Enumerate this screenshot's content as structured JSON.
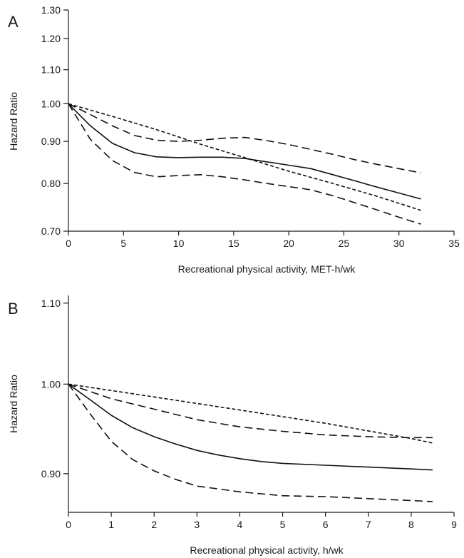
{
  "chart_data": [
    {
      "panel": "A",
      "type": "line",
      "xlabel": "Recreational physical activity, MET-h/wk",
      "ylabel": "Hazard Ratio",
      "xlim": [
        0,
        35
      ],
      "ylim": [
        0.7,
        1.3
      ],
      "yscale": "log",
      "xticks": [
        0,
        5,
        10,
        15,
        20,
        25,
        30,
        35
      ],
      "yticks": [
        0.7,
        0.8,
        0.9,
        1.0,
        1.1,
        1.2,
        1.3
      ],
      "ytick_labels": [
        "0.70",
        "0.80",
        "0.90",
        "1.00",
        "1.10",
        "1.20",
        "1.30"
      ],
      "grid": false,
      "legend": "none",
      "series": [
        {
          "style": "solid",
          "x": [
            0,
            2,
            4,
            6,
            8,
            10,
            12,
            14,
            16,
            18,
            20,
            22,
            24,
            26,
            28,
            30,
            32
          ],
          "y": [
            1.0,
            0.94,
            0.895,
            0.872,
            0.862,
            0.86,
            0.861,
            0.861,
            0.858,
            0.85,
            0.842,
            0.834,
            0.82,
            0.806,
            0.792,
            0.779,
            0.766
          ]
        },
        {
          "style": "long-dash",
          "x": [
            0,
            2,
            4,
            6,
            8,
            10,
            12,
            14,
            16,
            18,
            20,
            22,
            24,
            26,
            28,
            30,
            32
          ],
          "y": [
            1.0,
            0.905,
            0.853,
            0.825,
            0.815,
            0.818,
            0.82,
            0.815,
            0.808,
            0.8,
            0.793,
            0.786,
            0.773,
            0.758,
            0.743,
            0.728,
            0.714
          ]
        },
        {
          "style": "long-dash",
          "x": [
            0,
            2,
            4,
            6,
            8,
            10,
            12,
            14,
            16,
            18,
            20,
            22,
            24,
            26,
            28,
            30,
            32
          ],
          "y": [
            1.0,
            0.97,
            0.94,
            0.915,
            0.903,
            0.9,
            0.903,
            0.908,
            0.91,
            0.902,
            0.892,
            0.88,
            0.868,
            0.855,
            0.844,
            0.834,
            0.824
          ]
        },
        {
          "style": "short-dash",
          "x": [
            0,
            4,
            8,
            12,
            16,
            20,
            24,
            28,
            32
          ],
          "y": [
            1.0,
            0.965,
            0.93,
            0.893,
            0.86,
            0.828,
            0.8,
            0.772,
            0.742
          ]
        }
      ]
    },
    {
      "panel": "B",
      "type": "line",
      "xlabel": "Recreational physical activity, h/wk",
      "ylabel": "Hazard Ratio",
      "xlim": [
        0,
        9
      ],
      "ylim": [
        0.86,
        1.11
      ],
      "yscale": "log",
      "xticks": [
        0,
        1,
        2,
        3,
        4,
        5,
        6,
        7,
        8,
        9
      ],
      "yticks": [
        0.9,
        1.0,
        1.1
      ],
      "ytick_labels": [
        "0.90",
        "1.00",
        "1.10"
      ],
      "grid": false,
      "legend": "none",
      "series": [
        {
          "style": "solid",
          "x": [
            0,
            0.5,
            1,
            1.5,
            2,
            2.5,
            3,
            3.5,
            4,
            4.5,
            5,
            6,
            7,
            8,
            8.5
          ],
          "y": [
            1.0,
            0.982,
            0.964,
            0.95,
            0.94,
            0.932,
            0.925,
            0.92,
            0.916,
            0.913,
            0.911,
            0.909,
            0.907,
            0.905,
            0.904
          ]
        },
        {
          "style": "long-dash",
          "x": [
            0,
            0.5,
            1,
            1.5,
            2,
            2.5,
            3,
            3.5,
            4,
            4.5,
            5,
            6,
            7,
            8,
            8.5
          ],
          "y": [
            1.0,
            0.966,
            0.935,
            0.915,
            0.903,
            0.894,
            0.887,
            0.884,
            0.881,
            0.879,
            0.877,
            0.876,
            0.874,
            0.872,
            0.871
          ]
        },
        {
          "style": "long-dash",
          "x": [
            0,
            1,
            2,
            3,
            4,
            5,
            6,
            7,
            8,
            8.5
          ],
          "y": [
            1.0,
            0.983,
            0.971,
            0.959,
            0.951,
            0.946,
            0.942,
            0.94,
            0.939,
            0.939
          ]
        },
        {
          "style": "short-dash",
          "x": [
            0,
            2,
            4,
            6,
            8,
            8.5
          ],
          "y": [
            1.0,
            0.985,
            0.97,
            0.955,
            0.938,
            0.933
          ]
        }
      ]
    }
  ]
}
